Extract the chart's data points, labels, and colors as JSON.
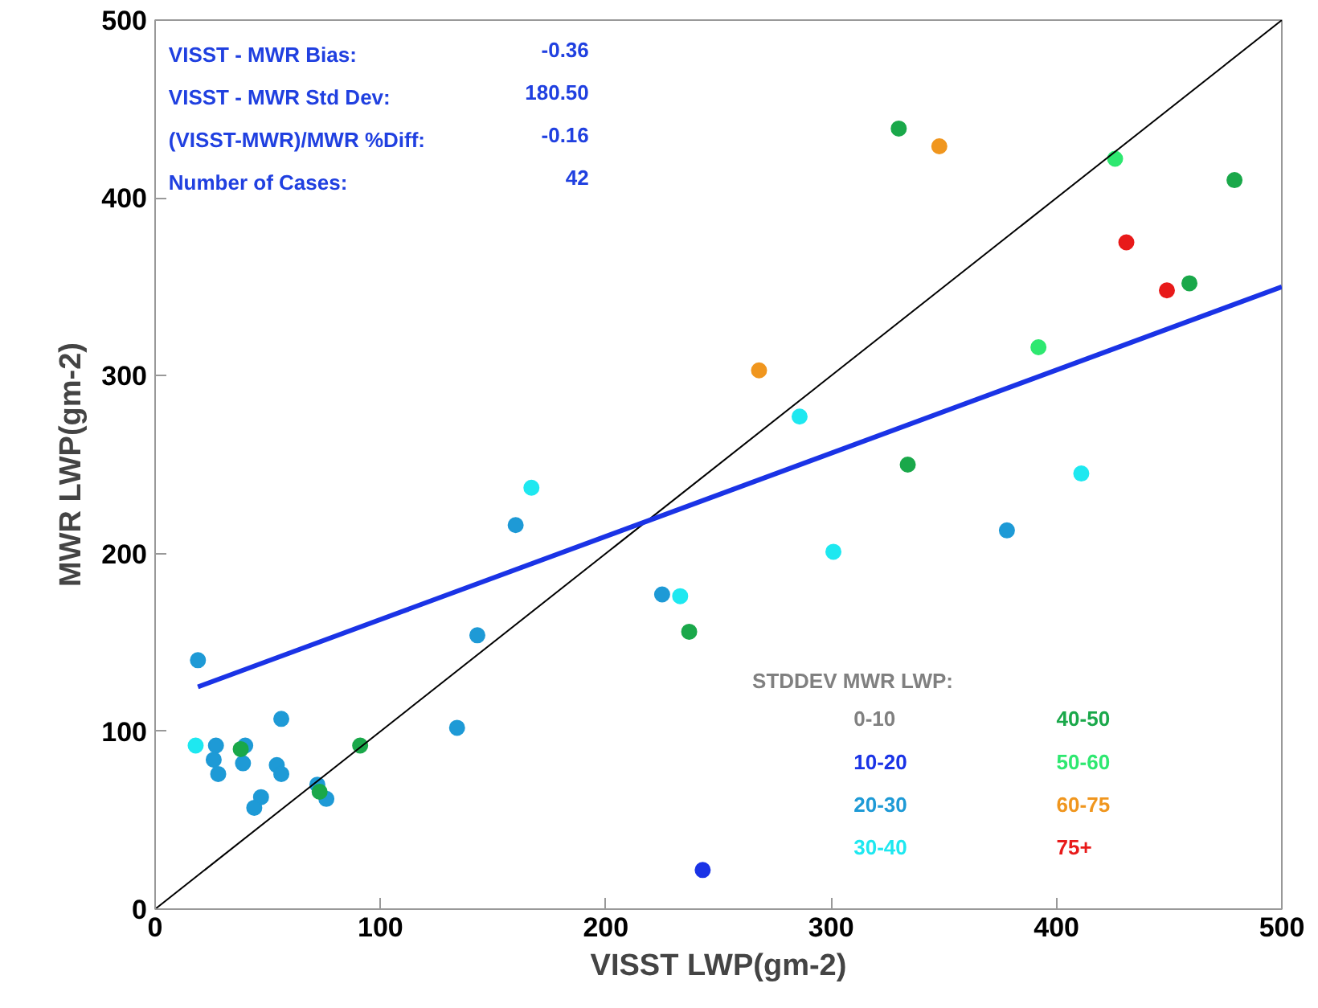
{
  "chart_data": {
    "type": "scatter",
    "xlabel": "VISST LWP(gm-2)",
    "ylabel": "MWR LWP(gm-2)",
    "xlim": [
      0,
      500
    ],
    "ylim": [
      0,
      500
    ],
    "xticks": [
      0,
      100,
      200,
      300,
      400,
      500
    ],
    "yticks": [
      0,
      100,
      200,
      300,
      400,
      500
    ],
    "marker": "circle",
    "legend": "bottom right",
    "legend_title": "STDDEV MWR LWP:",
    "annotations": [
      "VISST - MWR Bias:",
      "-0.36",
      "VISST - MWR Std Dev:",
      "180.50",
      "(VISST-MWR)/MWR %Diff:",
      "-0.16",
      "Number of Cases:",
      "42"
    ],
    "series": [
      {
        "name": "0-10",
        "color": "#808080"
      },
      {
        "name": "10-20",
        "color": "#1a33e6",
        "x": [
          243
        ],
        "values": [
          22
        ]
      },
      {
        "name": "20-30",
        "color": "#1e9ad6",
        "x": [
          19,
          27,
          26,
          28,
          40,
          39,
          56,
          54,
          56,
          47,
          44,
          72,
          76,
          134,
          143,
          160,
          225,
          378
        ],
        "values": [
          140,
          92,
          84,
          76,
          92,
          82,
          107,
          81,
          76,
          63,
          57,
          70,
          62,
          102,
          154,
          216,
          177,
          213
        ]
      },
      {
        "name": "30-40",
        "color": "#1ee8f0",
        "x": [
          18,
          167,
          233,
          286,
          301,
          411
        ],
        "values": [
          92,
          237,
          176,
          277,
          201,
          245
        ]
      },
      {
        "name": "40-50",
        "color": "#1aa84a",
        "x": [
          38,
          73,
          91,
          237,
          330,
          334,
          459,
          479
        ],
        "values": [
          90,
          66,
          92,
          156,
          439,
          250,
          352,
          410
        ]
      },
      {
        "name": "50-60",
        "color": "#2ee870",
        "x": [
          392,
          426
        ],
        "values": [
          316,
          422
        ]
      },
      {
        "name": "60-75",
        "color": "#f0961e",
        "x": [
          268,
          348
        ],
        "values": [
          303,
          429
        ]
      },
      {
        "name": "75+",
        "color": "#e81a1a",
        "x": [
          431,
          449
        ],
        "values": [
          375,
          348
        ]
      },
      {
        "type": "line",
        "marker": "none",
        "color": "#000000",
        "line_style": "solid",
        "x": [
          0,
          500
        ],
        "values": [
          0,
          500
        ]
      },
      {
        "type": "line",
        "marker": "none",
        "color": "#1a33e6",
        "line_style": "solid",
        "x": [
          19,
          500
        ],
        "values": [
          125,
          350
        ]
      }
    ]
  }
}
